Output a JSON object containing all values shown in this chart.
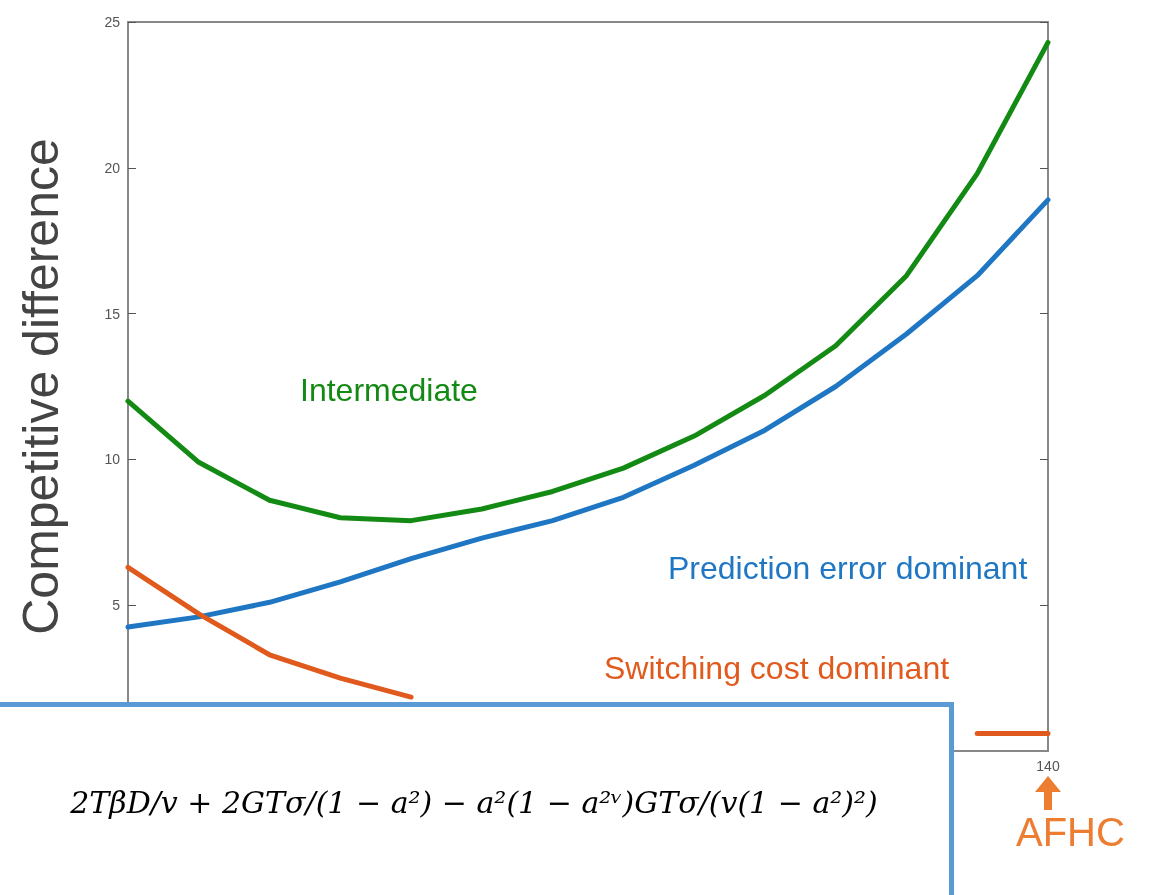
{
  "chart_data": {
    "type": "line",
    "ylabel": "Competitive difference",
    "categories": [
      null,
      null,
      null,
      null,
      null,
      null,
      null,
      null,
      null,
      null,
      null,
      null,
      null,
      null
    ],
    "ylim": [
      0,
      25
    ],
    "yticks": [
      5,
      10,
      15,
      20,
      25
    ],
    "marker": "none",
    "line_style": "solid",
    "series": [
      {
        "name": "Intermediate",
        "color": "#138a13",
        "values": [
          12.0,
          9.9,
          8.6,
          8.0,
          7.9,
          8.3,
          8.9,
          9.7,
          10.8,
          12.2,
          13.9,
          16.3,
          19.8,
          24.3
        ]
      },
      {
        "name": "Prediction error dominant",
        "color": "#1f77c4",
        "values": [
          4.25,
          4.6,
          5.1,
          5.8,
          6.6,
          7.3,
          7.9,
          8.7,
          9.8,
          11.0,
          12.5,
          14.3,
          16.3,
          18.9
        ]
      },
      {
        "name": "Switching cost dominant",
        "color": "#e05a1e",
        "values": [
          6.3,
          4.7,
          3.3,
          2.5,
          1.85,
          null,
          null,
          null,
          null,
          null,
          null,
          null,
          0.6,
          0.6
        ]
      }
    ],
    "annotations": [
      "2TβD/v + 2GTσ/(1 − a²) − a²(1 − a²ᵛ)GTσ/(v(1 − a²)²)",
      "140",
      "AFHC"
    ]
  }
}
